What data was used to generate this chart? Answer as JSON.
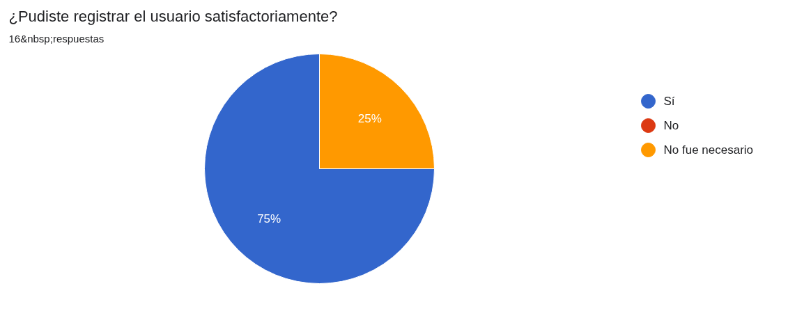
{
  "chart_data": {
    "type": "pie",
    "title": "¿Pudiste registrar el usuario satisfactoriamente?",
    "subtitle": "16&nbsp;respuestas",
    "categories": [
      "Sí",
      "No",
      "No fue necesario"
    ],
    "values": [
      75,
      0,
      25
    ],
    "colors": [
      "#3366cc",
      "#dc3912",
      "#ff9900"
    ],
    "value_labels": [
      "75%",
      null,
      "25%"
    ],
    "legend": "right"
  }
}
